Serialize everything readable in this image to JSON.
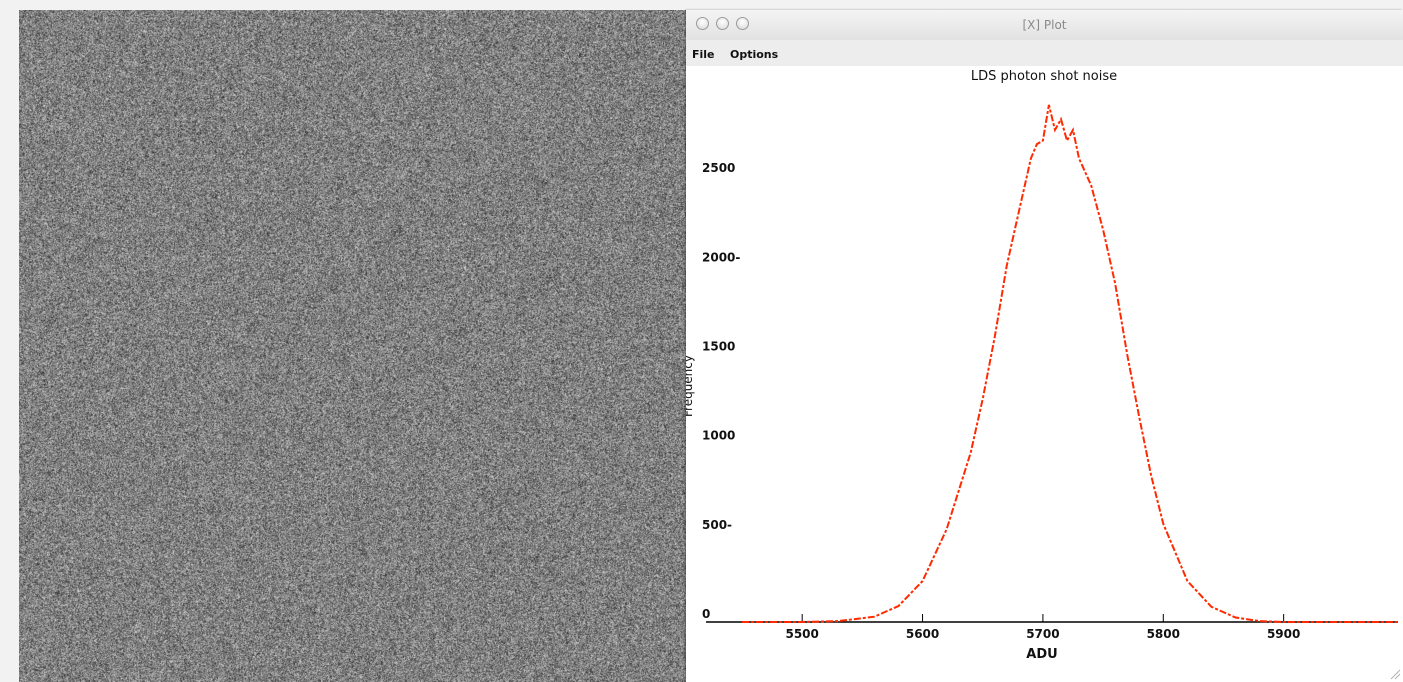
{
  "window": {
    "title": "[X] Plot",
    "menu": [
      "File",
      "Options"
    ]
  },
  "chart_data": {
    "type": "line",
    "title": "LDS photon shot noise",
    "xlabel": "ADU",
    "ylabel": "Frequency",
    "xlim": [
      5450,
      5995
    ],
    "ylim": [
      0,
      2950
    ],
    "x_ticks": [
      {
        "value": 5500,
        "label": "5500"
      },
      {
        "value": 5600,
        "label": "5600"
      },
      {
        "value": 5700,
        "label": "5700"
      },
      {
        "value": 5800,
        "label": "5800"
      },
      {
        "value": 5900,
        "label": "5900"
      }
    ],
    "y_ticks": [
      {
        "value": 0,
        "label": "0"
      },
      {
        "value": 500,
        "label": "500-"
      },
      {
        "value": 1000,
        "label": "1000"
      },
      {
        "value": 1500,
        "label": "1500"
      },
      {
        "value": 2000,
        "label": "2000-"
      },
      {
        "value": 2500,
        "label": "2500"
      }
    ],
    "line_color": "#ff2a00",
    "series": [
      {
        "x": [
          5450,
          5500,
          5530,
          5560,
          5580,
          5600,
          5620,
          5640,
          5650,
          5660,
          5670,
          5680,
          5690,
          5695,
          5700,
          5705,
          5710,
          5715,
          5720,
          5725,
          5730,
          5740,
          5750,
          5760,
          5770,
          5780,
          5790,
          5800,
          5820,
          5840,
          5860,
          5880,
          5900,
          5950,
          5995
        ],
        "y": [
          0,
          0,
          5,
          30,
          90,
          230,
          520,
          950,
          1250,
          1600,
          2000,
          2300,
          2600,
          2680,
          2700,
          2900,
          2760,
          2820,
          2700,
          2760,
          2600,
          2450,
          2200,
          1900,
          1500,
          1150,
          820,
          550,
          230,
          85,
          25,
          5,
          0,
          0,
          0
        ]
      }
    ]
  }
}
